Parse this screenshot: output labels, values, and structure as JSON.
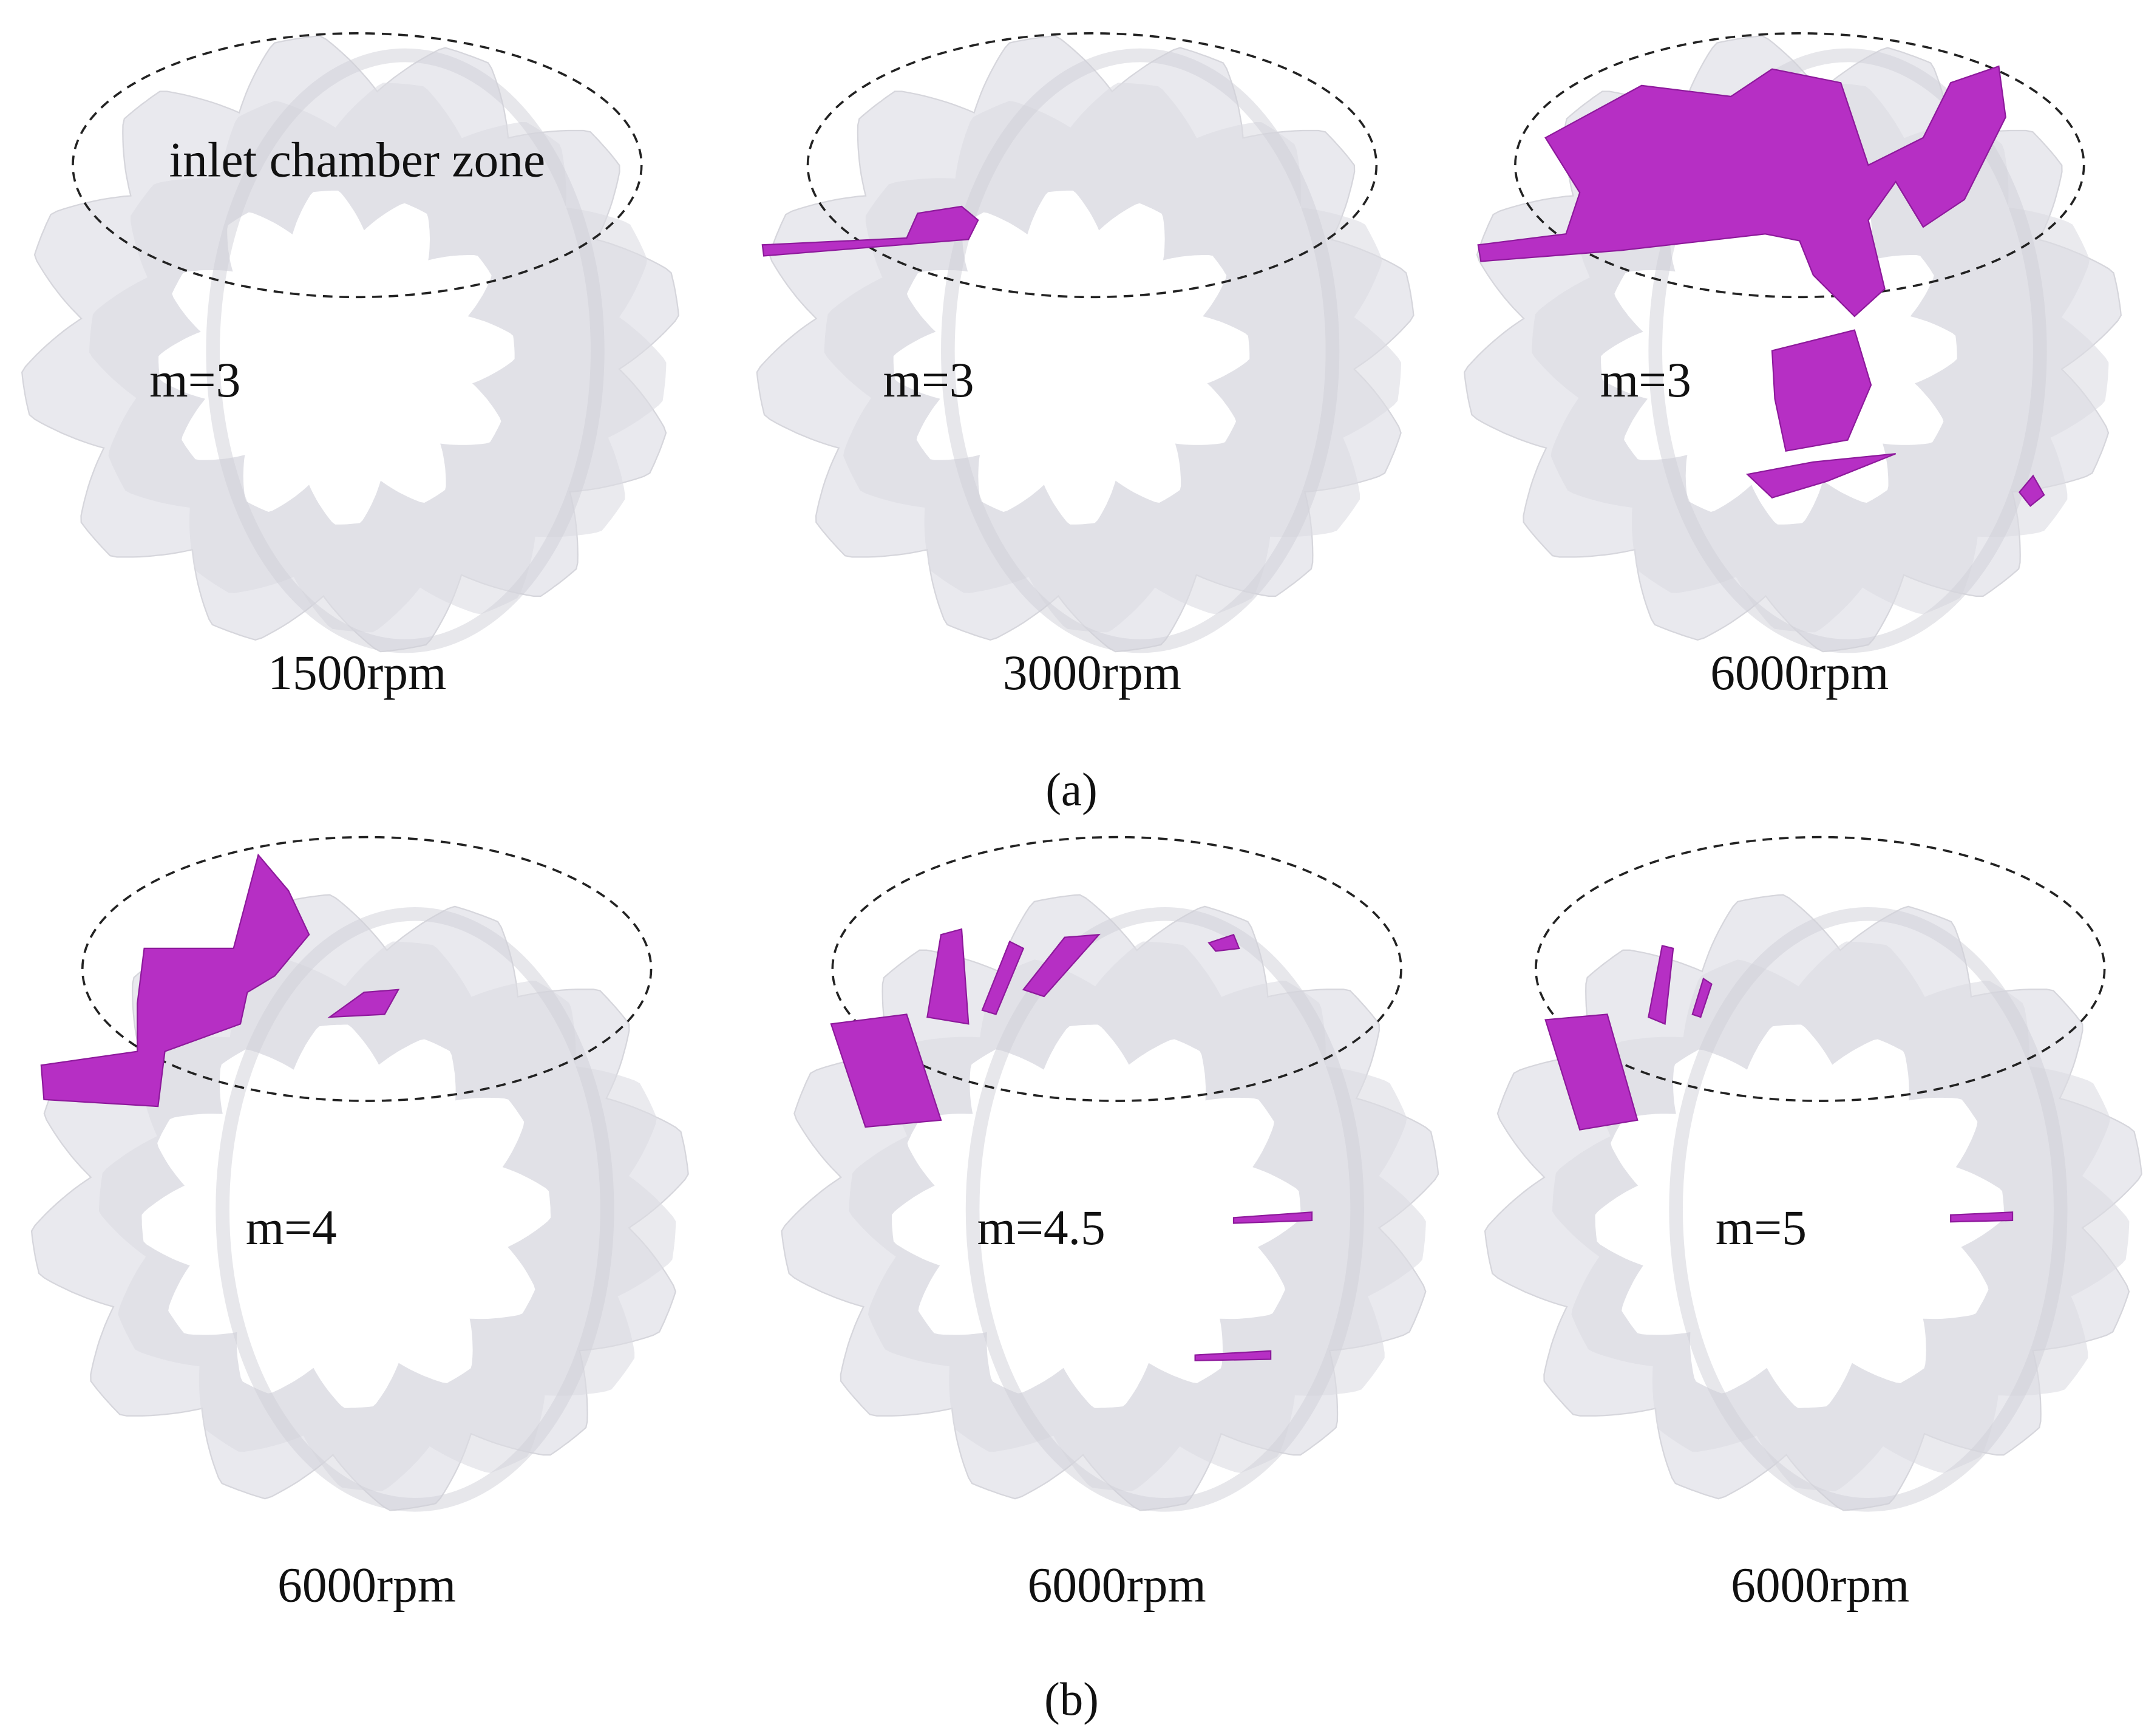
{
  "annotation": "inlet chamber zone",
  "panels": [
    {
      "caption": "(a)",
      "items": [
        {
          "ratio": "m=3",
          "speed": "1500rpm"
        },
        {
          "ratio": "m=3",
          "speed": "3000rpm"
        },
        {
          "ratio": "m=3",
          "speed": "6000rpm"
        }
      ]
    },
    {
      "caption": "(b)",
      "items": [
        {
          "ratio": "m=4",
          "speed": "6000rpm"
        },
        {
          "ratio": "m=4.5",
          "speed": "6000rpm"
        },
        {
          "ratio": "m=5",
          "speed": "6000rpm"
        }
      ]
    }
  ]
}
